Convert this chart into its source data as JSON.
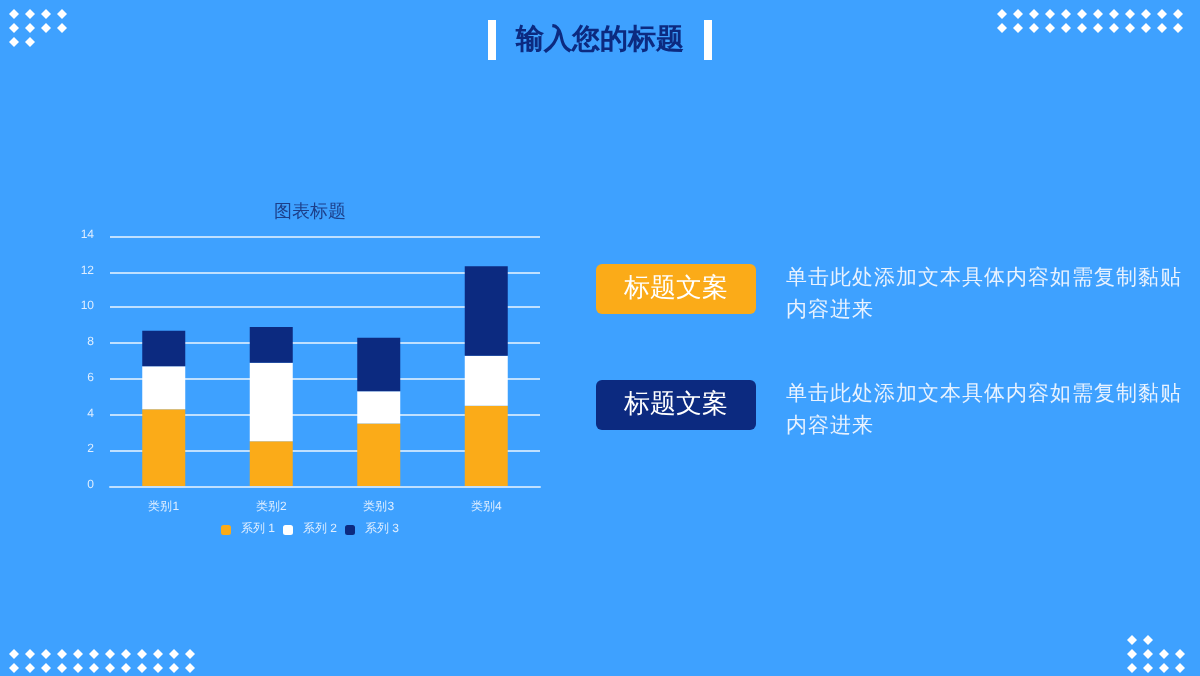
{
  "chart_data": {
    "type": "bar",
    "title": "输入您的标题",
    "subtitle": "图表标题",
    "categories": [
      "类别1",
      "类别2",
      "类别3",
      "类别4"
    ],
    "series": [
      {
        "name": "系列 1",
        "color": "#fbab18",
        "values": [
          4.3,
          2.5,
          3.5,
          4.5
        ]
      },
      {
        "name": "系列 2",
        "color": "#ffffff",
        "values": [
          2.4,
          4.4,
          1.8,
          2.8
        ]
      },
      {
        "name": "系列 3",
        "color": "#0c2a80",
        "values": [
          2,
          2,
          3,
          5
        ]
      }
    ],
    "stacked": true,
    "ylim": [
      0,
      14
    ],
    "yticks": [
      0,
      2,
      4,
      6,
      8,
      10,
      12,
      14
    ],
    "grid": true,
    "legend": "bottom",
    "annotations": [
      "标题文案",
      "单击此处添加文本具体内容如需复制黏贴内容进来",
      "标题文案",
      "单击此处添加文本具体内容如需复制黏贴内容进来"
    ]
  }
}
